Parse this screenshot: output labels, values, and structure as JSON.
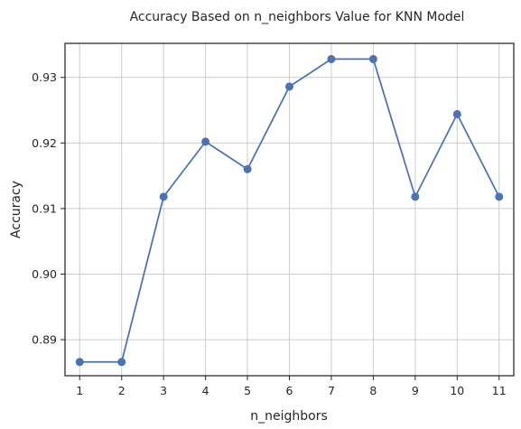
{
  "chart_data": {
    "type": "line",
    "title": "Accuracy Based on n_neighbors Value for KNN Model",
    "xlabel": "n_neighbors",
    "ylabel": "Accuracy",
    "x": [
      1,
      2,
      3,
      4,
      5,
      6,
      7,
      8,
      9,
      10,
      11
    ],
    "series": [
      {
        "values": [
          0.8866,
          0.8866,
          0.9118,
          0.9202,
          0.916,
          0.9286,
          0.9328,
          0.9328,
          0.9118,
          0.9244,
          0.9118
        ],
        "color": "#4c72b0",
        "marker": "circle"
      }
    ],
    "xlim": [
      0.65,
      11.35
    ],
    "ylim": [
      0.8845,
      0.9352
    ],
    "xticks": [
      "1",
      "2",
      "3",
      "4",
      "5",
      "6",
      "7",
      "8",
      "9",
      "10",
      "11"
    ],
    "yticks": [
      "0.89",
      "0.90",
      "0.91",
      "0.92",
      "0.93"
    ],
    "grid": true,
    "legend": "none"
  }
}
